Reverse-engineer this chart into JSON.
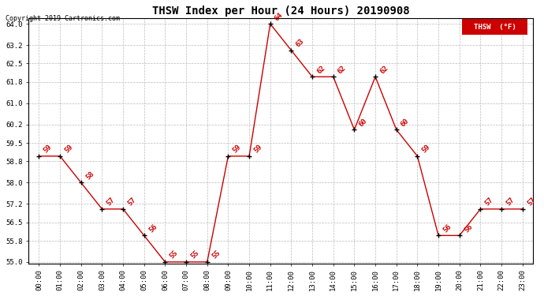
{
  "title": "THSW Index per Hour (24 Hours) 20190908",
  "copyright": "Copyright 2019 Cartronics.com",
  "legend_label": "THSW  (°F)",
  "hours": [
    0,
    1,
    2,
    3,
    4,
    5,
    6,
    7,
    8,
    9,
    10,
    11,
    12,
    13,
    14,
    15,
    16,
    17,
    18,
    19,
    20,
    21,
    22,
    23
  ],
  "values": [
    59,
    59,
    58,
    57,
    57,
    56,
    55,
    55,
    55,
    59,
    59,
    64,
    63,
    62,
    62,
    60,
    62,
    60,
    59,
    56,
    56,
    57,
    57,
    57
  ],
  "ylim_min": 55.0,
  "ylim_max": 64.0,
  "yticks": [
    55.0,
    55.8,
    56.5,
    57.2,
    58.0,
    58.8,
    59.5,
    60.2,
    61.0,
    61.8,
    62.5,
    63.2,
    64.0
  ],
  "line_color": "#cc0000",
  "marker_color": "#000000",
  "label_color": "#cc0000",
  "background_color": "#ffffff",
  "grid_color": "#bbbbbb",
  "title_fontsize": 10,
  "tick_fontsize": 6.5,
  "annot_fontsize": 6.5,
  "copyright_fontsize": 6
}
